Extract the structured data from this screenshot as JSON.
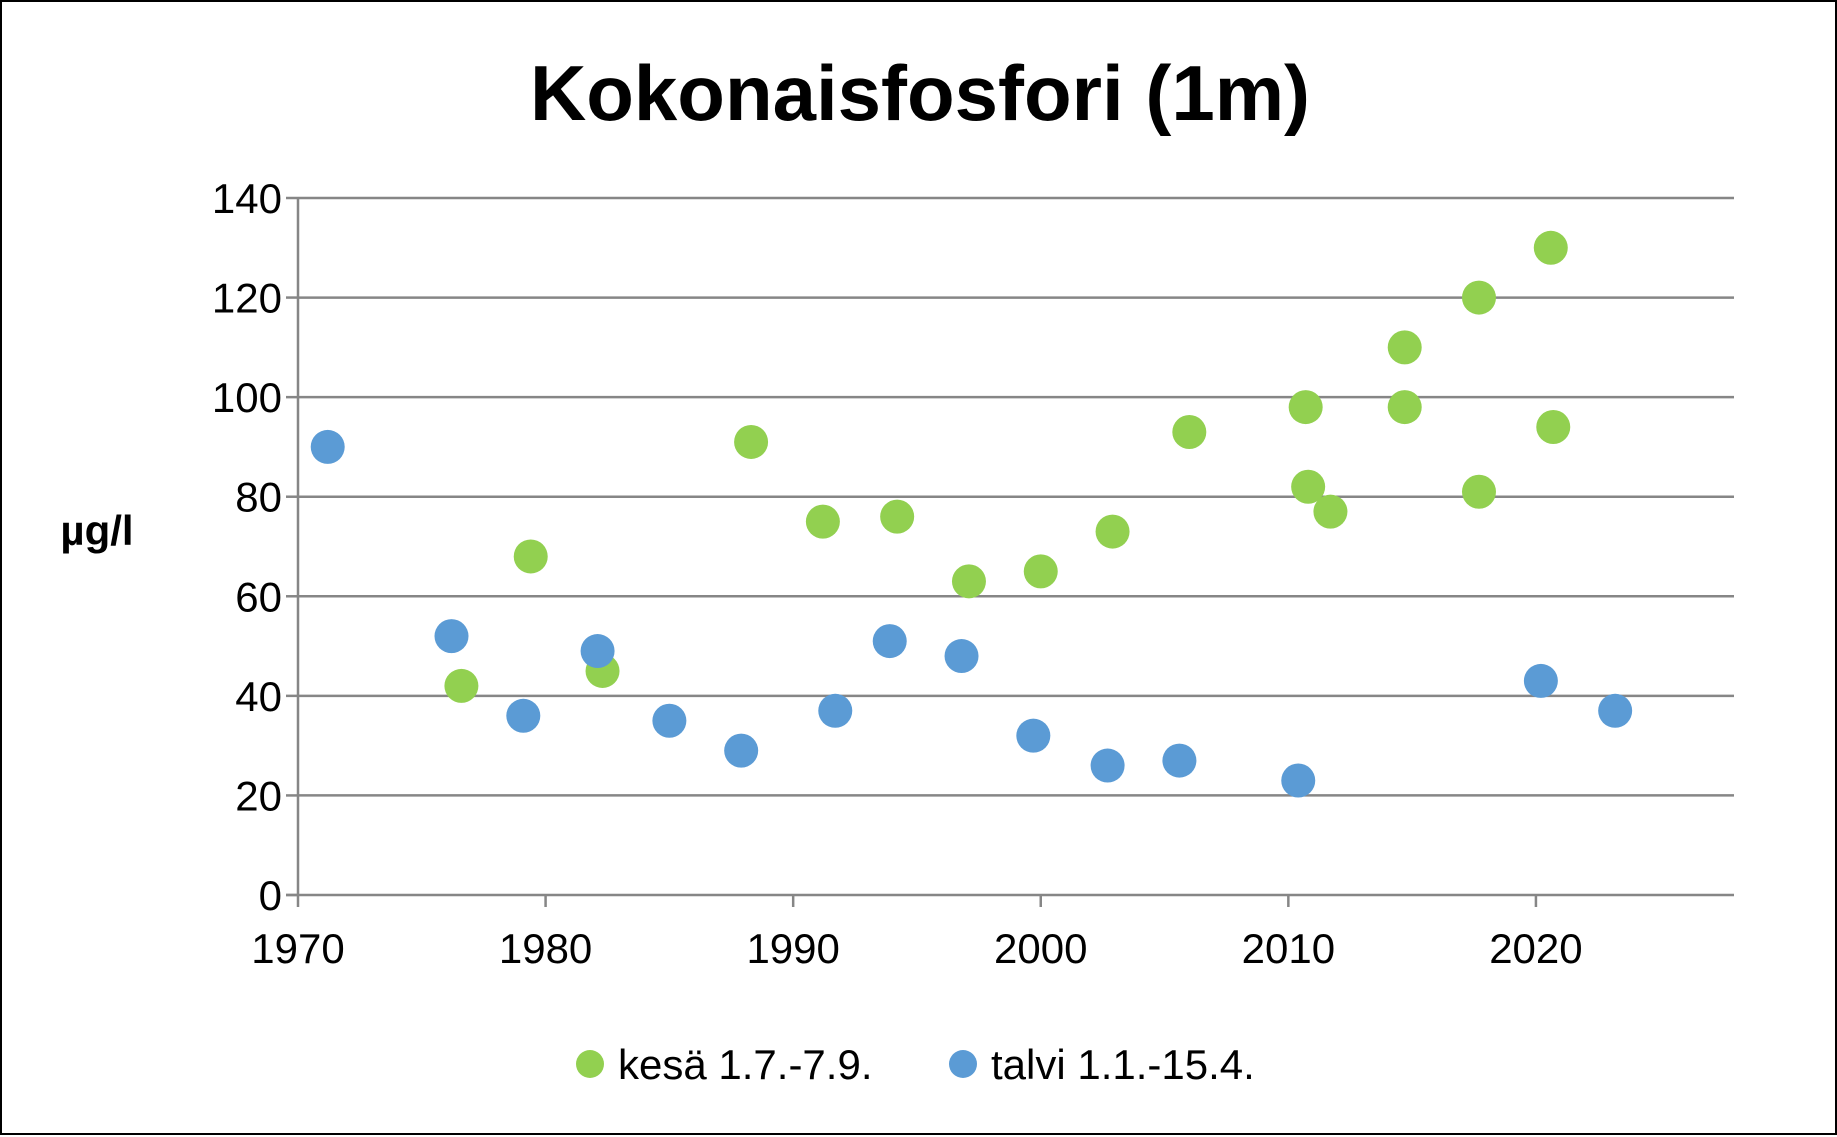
{
  "chart_data": {
    "type": "scatter",
    "title": "Kokonaisfosfori (1m)",
    "ylabel": "µg/l",
    "xlabel": "",
    "xlim": [
      1970,
      2028
    ],
    "ylim": [
      0,
      140
    ],
    "x_ticks": [
      1970,
      1980,
      1990,
      2000,
      2010,
      2020
    ],
    "y_ticks": [
      0,
      20,
      40,
      60,
      80,
      100,
      120,
      140
    ],
    "grid": "horizontal",
    "legend_position": "bottom",
    "series": [
      {
        "name": "kesä 1.7.-7.9.",
        "color": "#92d050",
        "points": [
          {
            "x": 1976.6,
            "y": 42
          },
          {
            "x": 1979.4,
            "y": 68
          },
          {
            "x": 1982.3,
            "y": 45
          },
          {
            "x": 1988.3,
            "y": 91
          },
          {
            "x": 1991.2,
            "y": 75
          },
          {
            "x": 1994.2,
            "y": 76
          },
          {
            "x": 1997.1,
            "y": 63
          },
          {
            "x": 2000.0,
            "y": 65
          },
          {
            "x": 2002.9,
            "y": 73
          },
          {
            "x": 2006.0,
            "y": 93
          },
          {
            "x": 2010.7,
            "y": 98
          },
          {
            "x": 2010.8,
            "y": 82
          },
          {
            "x": 2011.7,
            "y": 77
          },
          {
            "x": 2014.7,
            "y": 110
          },
          {
            "x": 2014.7,
            "y": 98
          },
          {
            "x": 2017.7,
            "y": 120
          },
          {
            "x": 2017.7,
            "y": 81
          },
          {
            "x": 2020.6,
            "y": 130
          },
          {
            "x": 2020.7,
            "y": 94
          }
        ]
      },
      {
        "name": "talvi 1.1.-15.4.",
        "color": "#5b9bd5",
        "points": [
          {
            "x": 1971.2,
            "y": 90
          },
          {
            "x": 1976.2,
            "y": 52
          },
          {
            "x": 1979.1,
            "y": 36
          },
          {
            "x": 1982.1,
            "y": 49
          },
          {
            "x": 1985.0,
            "y": 35
          },
          {
            "x": 1987.9,
            "y": 29
          },
          {
            "x": 1991.7,
            "y": 37
          },
          {
            "x": 1993.9,
            "y": 51
          },
          {
            "x": 1996.8,
            "y": 48
          },
          {
            "x": 1999.7,
            "y": 32
          },
          {
            "x": 2002.7,
            "y": 26
          },
          {
            "x": 2005.6,
            "y": 27
          },
          {
            "x": 2010.4,
            "y": 23
          },
          {
            "x": 2020.2,
            "y": 43
          },
          {
            "x": 2023.2,
            "y": 37
          }
        ]
      }
    ]
  }
}
